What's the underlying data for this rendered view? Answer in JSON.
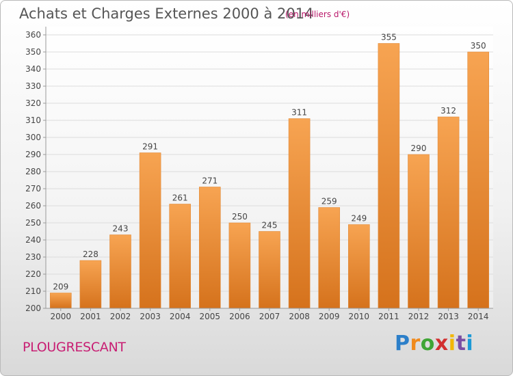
{
  "title": "Achats et Charges Externes 2000 à 2014",
  "subtitle": "(en milliers d'€)",
  "city": "PLOUGRESCANT",
  "logo": {
    "letters": [
      "P",
      "r",
      "o",
      "x",
      "i",
      "t",
      "i"
    ]
  },
  "colors": {
    "bar_light": "#f7a452",
    "bar_dark": "#d5721c",
    "title": "#555555",
    "subtitle": "#b9186a",
    "city": "#c81e73"
  },
  "chart_data": {
    "type": "bar",
    "title": "Achats et Charges Externes 2000 à 2014",
    "subtitle": "(en milliers d'€)",
    "categories": [
      "2000",
      "2001",
      "2002",
      "2003",
      "2004",
      "2005",
      "2006",
      "2007",
      "2008",
      "2009",
      "2010",
      "2011",
      "2012",
      "2013",
      "2014"
    ],
    "values": [
      209,
      228,
      243,
      291,
      261,
      271,
      250,
      245,
      311,
      259,
      249,
      355,
      290,
      312,
      350
    ],
    "ylim": [
      200,
      360
    ],
    "yticks": [
      200,
      210,
      220,
      230,
      240,
      250,
      260,
      270,
      280,
      290,
      300,
      310,
      320,
      330,
      340,
      350,
      360
    ],
    "grid": true,
    "xlabel": "",
    "ylabel": ""
  }
}
